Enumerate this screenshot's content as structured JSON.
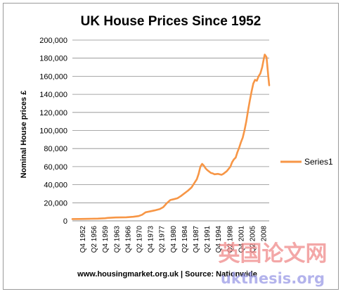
{
  "chart_data": {
    "type": "line",
    "title": "UK House Prices Since 1952",
    "xlabel": "",
    "ylabel": "Nominal House prices £",
    "ylim": [
      0,
      200000
    ],
    "yticks": [
      "0",
      "20,000",
      "40,000",
      "60,000",
      "80,000",
      "100,000",
      "120,000",
      "140,000",
      "160,000",
      "180,000",
      "200,000"
    ],
    "xlim": [
      1952.75,
      2008.5
    ],
    "xticks": [
      "Q4 1952",
      "Q2 1956",
      "Q4 1959",
      "Q2 1963",
      "Q4 1966",
      "Q2 1970",
      "Q4 1973",
      "Q2 1977",
      "Q4 1980",
      "Q2 1984",
      "Q4 1987",
      "Q2 1991",
      "Q4 1994",
      "Q2 1998",
      "Q4 2001",
      "Q2 2005",
      "2008"
    ],
    "grid": "horizontal",
    "legend": "right",
    "line_color": "#f79646",
    "series": [
      {
        "name": "Series1",
        "x": [
          1952.75,
          1955,
          1958,
          1960,
          1962,
          1962.75,
          1965,
          1968,
          1970,
          1971.5,
          1972.5,
          1973.5,
          1974.5,
          1976,
          1977.5,
          1978.5,
          1979.5,
          1980.5,
          1981.5,
          1982.5,
          1983.5,
          1984.5,
          1985.5,
          1986.5,
          1987,
          1987.5,
          1988,
          1988.5,
          1989,
          1989.5,
          1990,
          1990.5,
          1991,
          1992,
          1992.5,
          1993,
          1994,
          1995,
          1995.5,
          1996.5,
          1997.5,
          1998,
          1998.5,
          1999,
          1999.5,
          2000,
          2000.5,
          2001,
          2001.5,
          2002,
          2002.5,
          2003,
          2003.5,
          2004,
          2004.5,
          2005,
          2005.5,
          2006,
          2006.5,
          2007,
          2007.25,
          2007.75,
          2008.25,
          2008.5
        ],
        "y": [
          2000,
          2100,
          2300,
          2500,
          2900,
          3300,
          3700,
          4000,
          4500,
          5300,
          6800,
          9500,
          10300,
          11500,
          13000,
          15200,
          19500,
          23000,
          24000,
          25000,
          27500,
          30500,
          33500,
          37000,
          40000,
          43000,
          46000,
          52000,
          60000,
          63000,
          61000,
          58000,
          56000,
          53000,
          52500,
          51500,
          52000,
          51000,
          52000,
          55000,
          60000,
          65000,
          68000,
          70000,
          76000,
          81000,
          87000,
          92000,
          100000,
          110000,
          122000,
          133000,
          143000,
          152000,
          156000,
          155000,
          160000,
          163000,
          170000,
          180000,
          184000,
          181000,
          160000,
          150000
        ]
      }
    ],
    "annotations": [
      "www.housingmarket.org.uk | Source: Nationwide"
    ],
    "watermark": [
      "英国论文网",
      "ukthesis.org"
    ]
  }
}
